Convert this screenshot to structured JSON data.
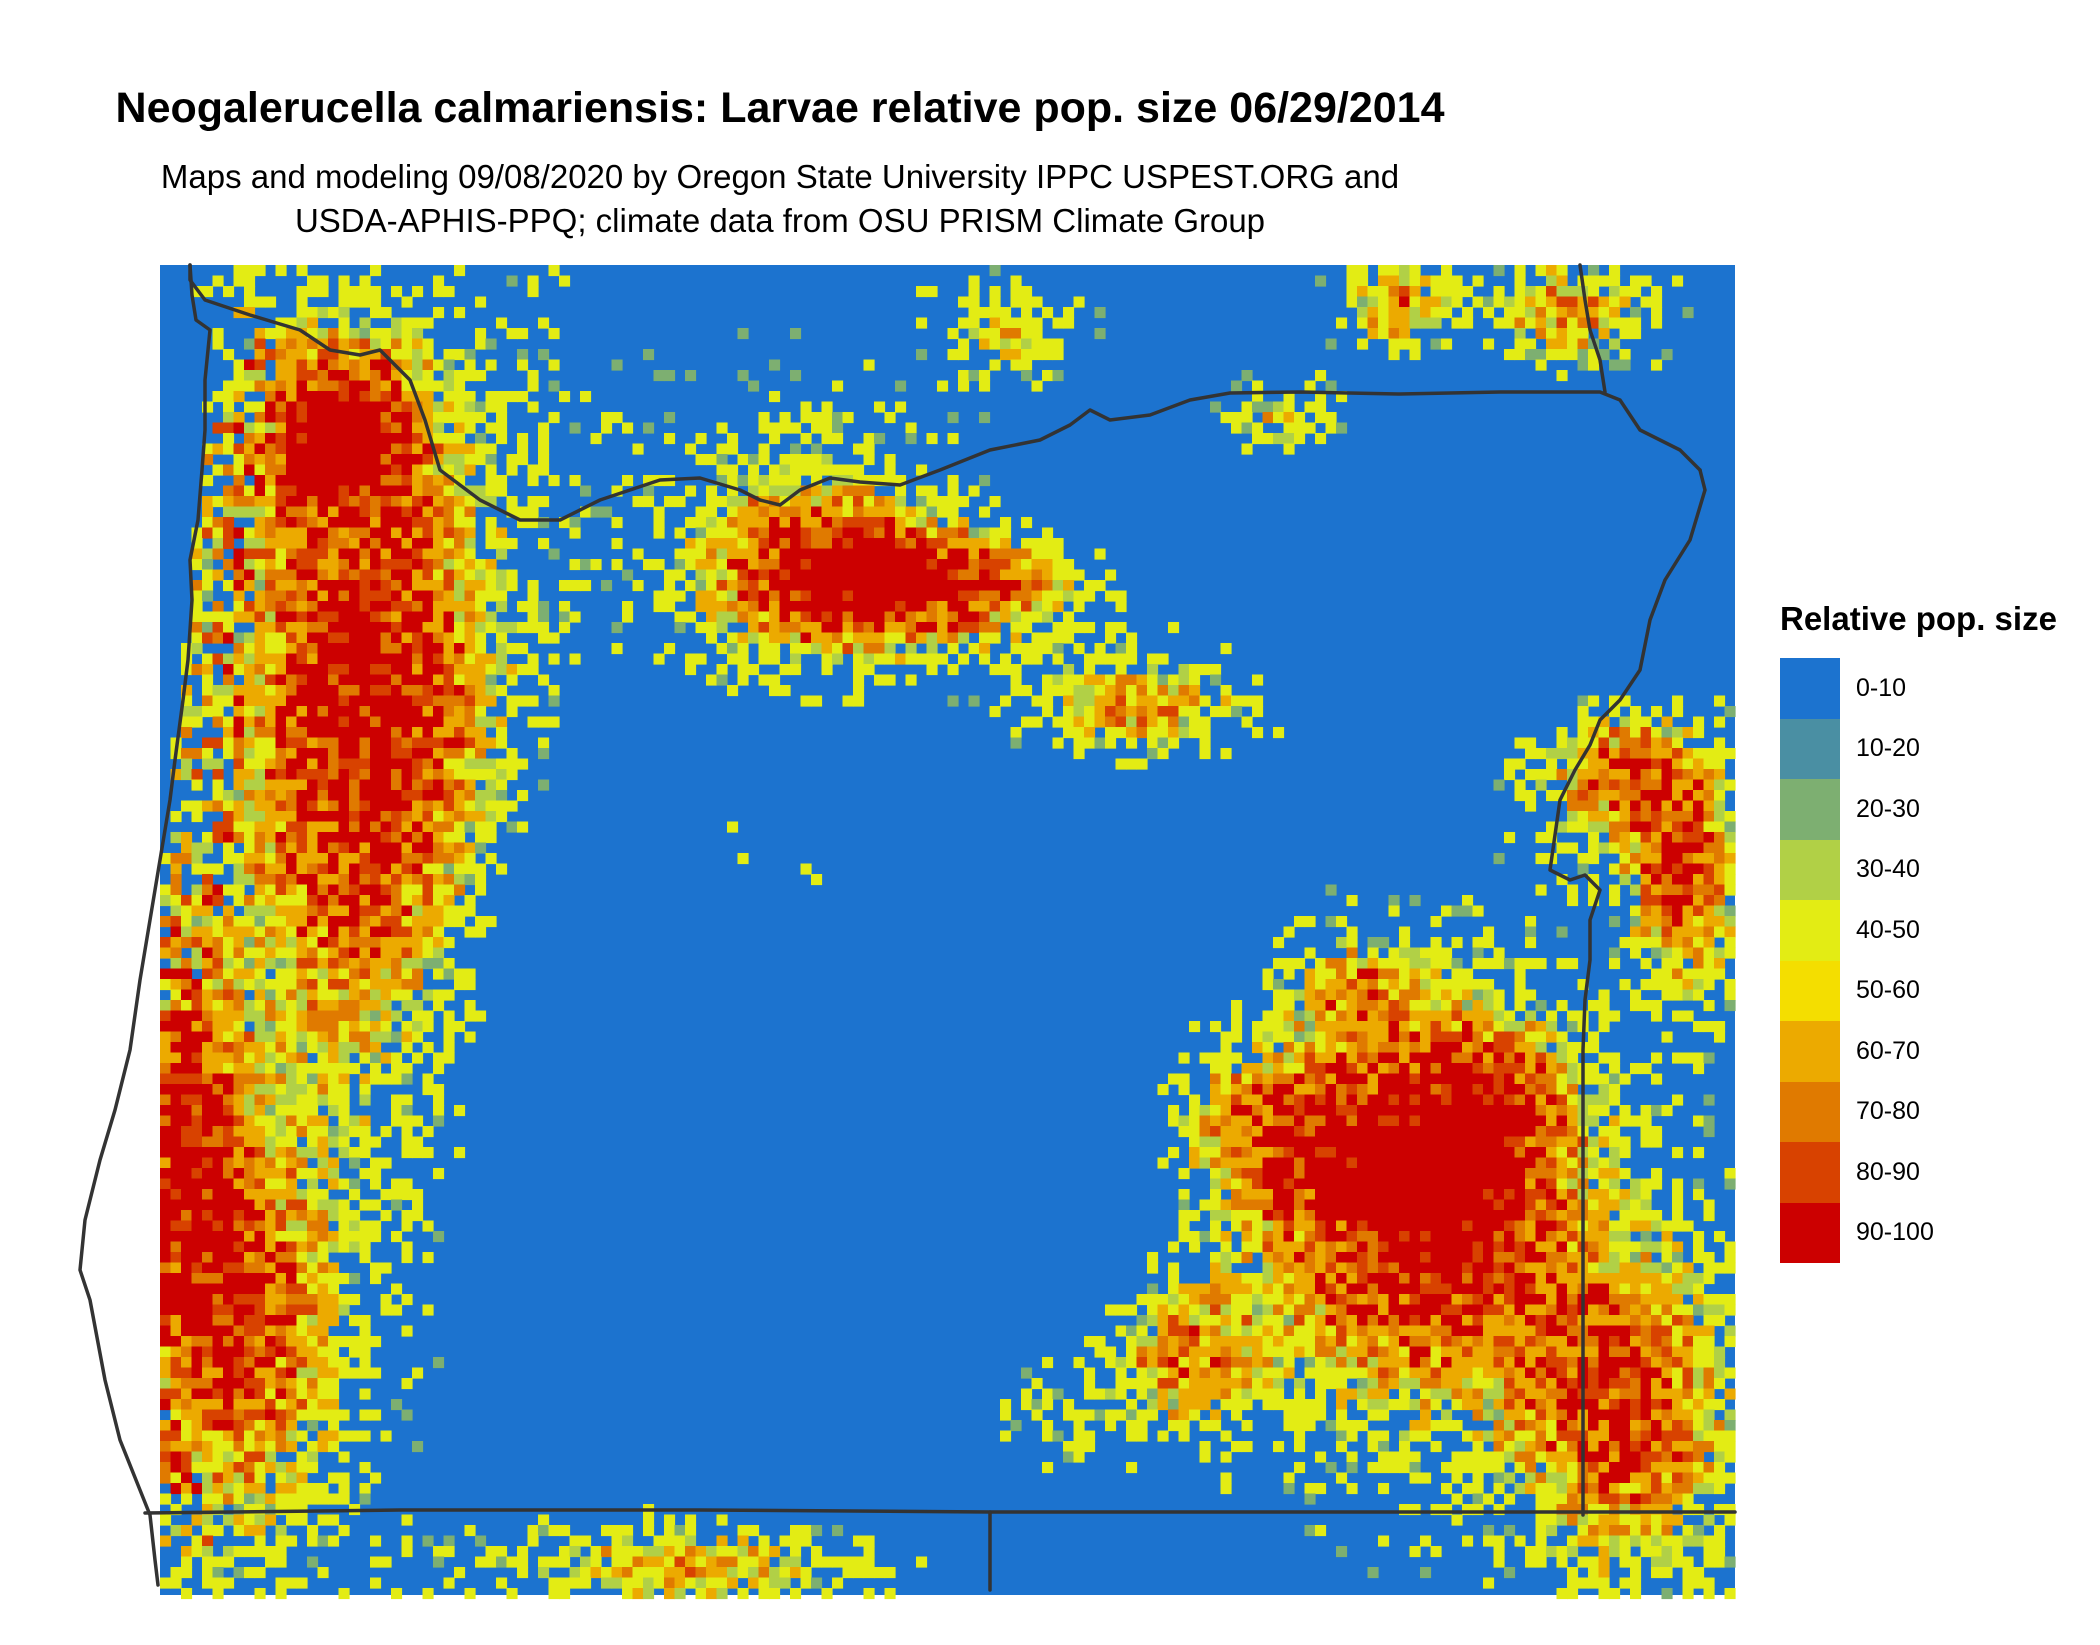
{
  "title": "Neogalerucella calmariensis: Larvae relative pop. size 06/29/2014",
  "subtitle": {
    "line1": "Maps and modeling 09/08/2020 by Oregon State University IPPC USPEST.ORG and",
    "line2": "USDA-APHIS-PPQ; climate data from OSU PRISM Climate Group"
  },
  "legend": {
    "title": "Relative pop. size",
    "items": [
      {
        "label": "0-10",
        "color": "#1c73cf"
      },
      {
        "label": "10-20",
        "color": "#4a8fa3"
      },
      {
        "label": "20-30",
        "color": "#7daf71"
      },
      {
        "label": "30-40",
        "color": "#b1d046"
      },
      {
        "label": "40-50",
        "color": "#e3ec14"
      },
      {
        "label": "50-60",
        "color": "#f4de00"
      },
      {
        "label": "60-70",
        "color": "#ecaa00"
      },
      {
        "label": "70-80",
        "color": "#e07a00"
      },
      {
        "label": "80-90",
        "color": "#d84200"
      },
      {
        "label": "90-100",
        "color": "#cc0000"
      }
    ]
  },
  "map": {
    "region": "Oregon",
    "background_class": "0-10",
    "boundary_color": "#333333"
  }
}
